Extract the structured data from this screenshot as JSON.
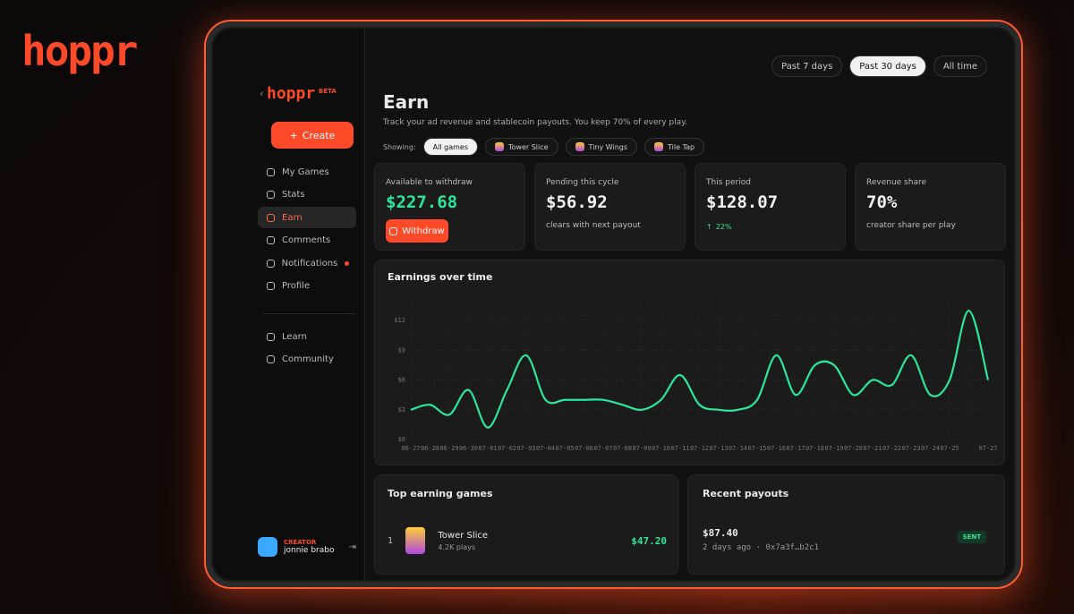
{
  "brand": "hoppr",
  "time_filters": {
    "items": [
      "Past 7 days",
      "Past 30 days",
      "All time"
    ],
    "active": 1
  },
  "sidebar": {
    "logo": "hoppr",
    "badge": "BETA",
    "create": "Create",
    "nav": [
      "My Games",
      "Stats",
      "Earn",
      "Comments",
      "Notifications",
      "Profile"
    ],
    "active": 2,
    "secondary": [
      "Learn",
      "Community"
    ],
    "user": {
      "role": "CREATOR",
      "name": "jonnie brabo"
    }
  },
  "header": {
    "title": "Earn",
    "subtitle": "Track your ad revenue and stablecoin payouts. You keep 70% of every play."
  },
  "filters": {
    "label": "Showing:",
    "chips": [
      "All games",
      "Tower Slice",
      "Tiny Wings",
      "Tile Tap"
    ],
    "active": 0
  },
  "cards": [
    {
      "label": "Available to withdraw",
      "value": "$227.68",
      "button": "Withdraw"
    },
    {
      "label": "Pending this cycle",
      "value": "$56.92",
      "note": "clears with next payout"
    },
    {
      "label": "This period",
      "value": "$128.07",
      "change": "22%"
    },
    {
      "label": "Revenue share",
      "value": "70%",
      "note": "creator share per play"
    }
  ],
  "chart_data": {
    "type": "line",
    "title": "Earnings over time",
    "categories": [
      "06-27",
      "06-28",
      "06-29",
      "06-30",
      "07-01",
      "07-02",
      "07-03",
      "07-04",
      "07-05",
      "07-06",
      "07-07",
      "07-08",
      "07-09",
      "07-10",
      "07-11",
      "07-12",
      "07-13",
      "07-14",
      "07-15",
      "07-16",
      "07-17",
      "07-18",
      "07-19",
      "07-20",
      "07-21",
      "07-22",
      "07-23",
      "07-24",
      "07-25",
      null,
      "07-27"
    ],
    "series": [
      {
        "name": "Earnings",
        "color": "#2ee59d",
        "values": [
          3,
          3.5,
          2.5,
          5,
          1.2,
          5,
          8.5,
          4,
          4,
          4,
          4,
          3.5,
          3,
          4,
          6.5,
          3.5,
          3,
          3,
          4,
          8.5,
          4.5,
          7.5,
          7.5,
          4.5,
          6,
          5.5,
          8.5,
          4.5,
          6,
          13,
          6
        ]
      }
    ],
    "ylim": [
      0,
      14
    ],
    "yticks": [
      {
        "value": 0,
        "label": "$0"
      },
      {
        "value": 3,
        "label": "$3"
      },
      {
        "value": 6,
        "label": "$6"
      },
      {
        "value": 9,
        "label": "$9"
      },
      {
        "value": 12,
        "label": "$12"
      }
    ],
    "grid": true
  },
  "top_games": {
    "title": "Top earning games",
    "rows": [
      {
        "rank": "1",
        "name": "Tower Slice",
        "plays": "4.2K plays",
        "amount": "$47.20"
      }
    ]
  },
  "payouts": {
    "title": "Recent payouts",
    "rows": [
      {
        "amount": "$87.40",
        "meta": "2 days ago · 0x7a3f…b2c1",
        "status": "SENT"
      }
    ]
  }
}
